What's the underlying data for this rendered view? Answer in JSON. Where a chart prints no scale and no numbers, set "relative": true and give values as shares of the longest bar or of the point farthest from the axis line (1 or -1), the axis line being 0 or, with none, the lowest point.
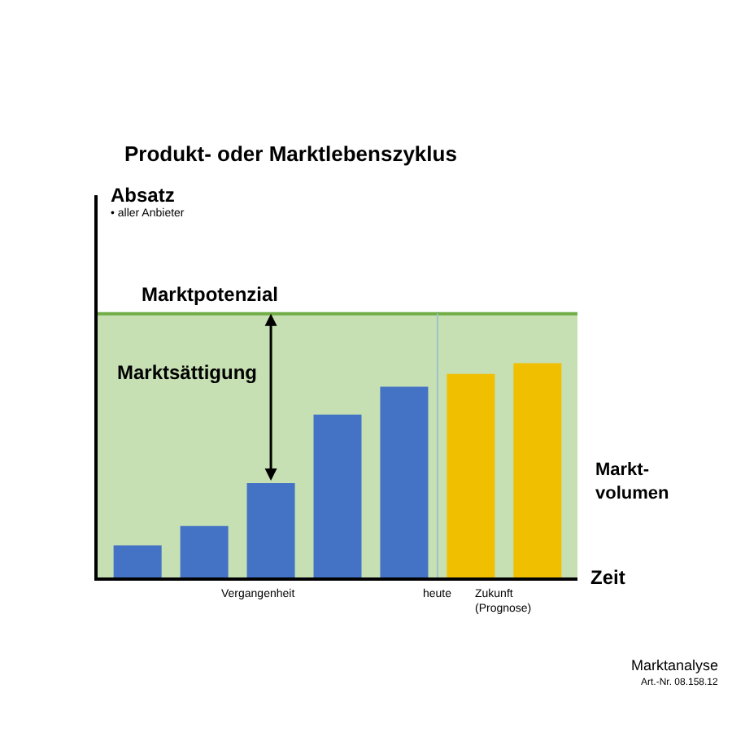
{
  "chart_data": {
    "type": "bar",
    "title": "Produkt- oder Marktlebenszyklus",
    "xlabel": "Zeit",
    "relative": true,
    "categories": [
      null,
      null,
      null,
      null,
      null,
      null,
      null
    ],
    "values": [
      0.15,
      0.24,
      0.44,
      0.76,
      0.89,
      0.95,
      1
    ],
    "colors": [
      "#4472c4",
      "#4472c4",
      "#4472c4",
      "#4472c4",
      "#4472c4",
      "#f0c000",
      "#f0c000"
    ],
    "ref_lines": [
      {
        "axis": "y",
        "value": 1.23,
        "label": "Marktpotenzial",
        "color": "#70ad47"
      }
    ],
    "bands": [
      {
        "axis": "y",
        "from": 0,
        "to": 1.23,
        "color": "#c6e0b4"
      }
    ],
    "annotations": [
      "Absatz",
      "• aller Anbieter",
      "Marktsättigung",
      "Markt-\nvolumen",
      "Vergangenheit",
      "heute",
      "Zukunft\n(Prognose)",
      "Marktanalyse",
      "Art.-Nr. 08.158.12"
    ],
    "grid": false,
    "legend": false
  }
}
